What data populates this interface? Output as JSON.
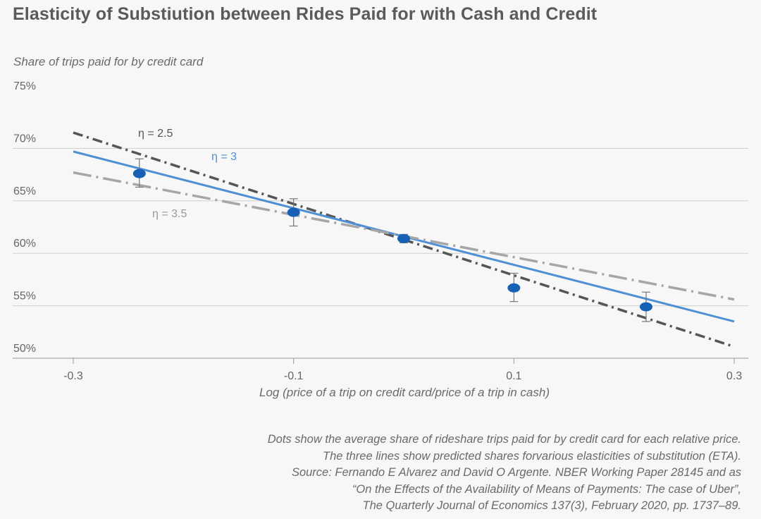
{
  "title": "Elasticity of Substiution between Rides Paid for with Cash and Credit",
  "chart_data": {
    "type": "scatter",
    "title": "Elasticity of Substiution between Rides Paid for with Cash and Credit",
    "ylabel": "Share of trips paid for by credit card",
    "xlabel": "Log (price of a trip on credit card/price of a trip in cash)",
    "xlim": [
      -0.3,
      0.3
    ],
    "ylim": [
      50,
      75
    ],
    "x_ticks": [
      "-0.3",
      "-0.1",
      "0.1",
      "0.3"
    ],
    "x_tick_values": [
      -0.3,
      -0.1,
      0.1,
      0.3
    ],
    "y_ticks": [
      "75%",
      "70%",
      "65%",
      "60%",
      "55%",
      "50%"
    ],
    "y_tick_values": [
      75,
      70,
      65,
      60,
      55,
      50
    ],
    "grid": "horizontal",
    "points": {
      "x": [
        -0.24,
        -0.1,
        0.0,
        0.1,
        0.22
      ],
      "y": [
        67.6,
        63.9,
        61.4,
        56.7,
        54.9
      ],
      "err_low": [
        66.3,
        62.6,
        61.0,
        55.4,
        53.5
      ],
      "err_high": [
        69.0,
        65.2,
        61.8,
        58.1,
        56.3
      ],
      "color": "#1660b5"
    },
    "series": [
      {
        "name": "η = 2.5",
        "x": [
          -0.3,
          0.3
        ],
        "y": [
          71.5,
          51.1
        ],
        "style": "dash-dot",
        "color": "#555555"
      },
      {
        "name": "η = 3",
        "x": [
          -0.3,
          0.3
        ],
        "y": [
          69.7,
          53.5
        ],
        "style": "solid",
        "color": "#4f8fd4"
      },
      {
        "name": "η = 3.5",
        "x": [
          -0.3,
          0.3
        ],
        "y": [
          67.7,
          55.6
        ],
        "style": "long-dash-dot",
        "color": "#a6a6a6"
      }
    ],
    "annotations": [
      "η = 2.5",
      "η = 3",
      "η = 3.5"
    ]
  },
  "notes": [
    "Dots show the average share of rideshare trips paid for by credit card for each relative price.",
    "The three lines show predicted shares forvarious elasticities of substitution (ETA).",
    "Source: Fernando E Alvarez and David O Argente. NBER Working Paper 28145 and as",
    "“On the Effects of the Availability of Means of Payments: The case of Uber”,",
    "The Quarterly Journal of Economics 137(3), February 2020, pp. 1737–89."
  ]
}
